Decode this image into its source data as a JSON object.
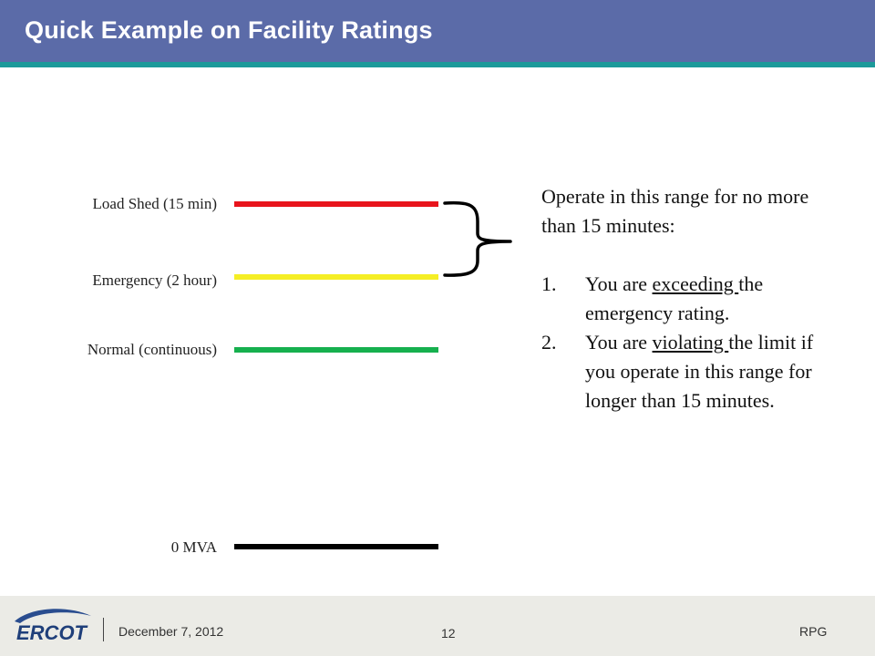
{
  "header": {
    "title": "Quick Example on Facility Ratings"
  },
  "levels": [
    {
      "label": "Load Shed (15 min)",
      "color": "#e8141c"
    },
    {
      "label": "Emergency (2 hour)",
      "color": "#f5ee25"
    },
    {
      "label": "Normal (continuous)",
      "color": "#16b04e"
    },
    {
      "label": "0 MVA",
      "color": "#000000"
    }
  ],
  "note": {
    "intro": "Operate in this range for no more than 15 minutes:",
    "items": [
      {
        "num": "1.",
        "pre": "You are ",
        "emph": "exceeding ",
        "post": "the emergency rating."
      },
      {
        "num": "2.",
        "pre": "You are ",
        "emph": "violating ",
        "post": "the limit if you operate in this range for longer than 15 minutes."
      }
    ]
  },
  "footer": {
    "logo_text": "ERCOT",
    "date": "December 7, 2012",
    "page": "12",
    "org": "RPG"
  }
}
